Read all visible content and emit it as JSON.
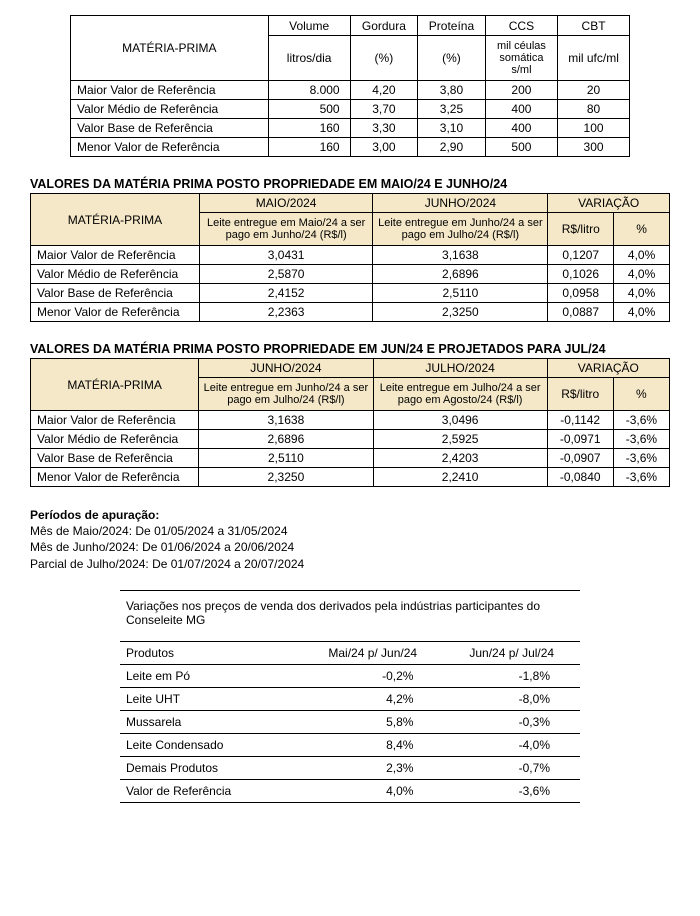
{
  "table1": {
    "header_main": "MATÉRIA-PRIMA",
    "col_groups": [
      "Volume",
      "Gordura",
      "Proteína",
      "CCS",
      "CBT"
    ],
    "col_units": [
      "litros/dia",
      "(%)",
      "(%)",
      "mil céulas somática s/ml",
      "mil ufc/ml"
    ],
    "rows": [
      {
        "label": "Maior Valor de Referência",
        "v": [
          "8.000",
          "4,20",
          "3,80",
          "200",
          "20"
        ]
      },
      {
        "label": "Valor Médio de Referência",
        "v": [
          "500",
          "3,70",
          "3,25",
          "400",
          "80"
        ]
      },
      {
        "label": "Valor Base de Referência",
        "v": [
          "160",
          "3,30",
          "3,10",
          "400",
          "100"
        ]
      },
      {
        "label": "Menor Valor de Referência",
        "v": [
          "160",
          "3,00",
          "2,90",
          "500",
          "300"
        ]
      }
    ]
  },
  "section2": {
    "title": "VALORES DA MATÉRIA PRIMA POSTO PROPRIEDADE EM MAIO/24 E JUNHO/24",
    "header_main": "MATÉRIA-PRIMA",
    "col1_top": "MAIO/2024",
    "col1_sub": "Leite entregue em Maio/24 a ser pago em Junho/24 (R$/l)",
    "col2_top": "JUNHO/2024",
    "col2_sub": "Leite entregue em Junho/24 a ser pago em Julho/24 (R$/l)",
    "var_top": "VARIAÇÃO",
    "var_sub1": "R$/litro",
    "var_sub2": "%",
    "rows": [
      {
        "label": "Maior Valor de Referência",
        "a": "3,0431",
        "b": "3,1638",
        "d": "0,1207",
        "p": "4,0%"
      },
      {
        "label": "Valor Médio de Referência",
        "a": "2,5870",
        "b": "2,6896",
        "d": "0,1026",
        "p": "4,0%"
      },
      {
        "label": "Valor Base de Referência",
        "a": "2,4152",
        "b": "2,5110",
        "d": "0,0958",
        "p": "4,0%"
      },
      {
        "label": "Menor Valor de Referência",
        "a": "2,2363",
        "b": "2,3250",
        "d": "0,0887",
        "p": "4,0%"
      }
    ]
  },
  "section3": {
    "title": "VALORES DA MATÉRIA PRIMA POSTO PROPRIEDADE EM JUN/24 E PROJETADOS PARA JUL/24",
    "header_main": "MATÉRIA-PRIMA",
    "col1_top": "JUNHO/2024",
    "col1_sub": "Leite entregue em Junho/24 a ser pago em Julho/24 (R$/l)",
    "col2_top": "JULHO/2024",
    "col2_sub": "Leite entregue em Julho/24 a ser pago em Agosto/24 (R$/l)",
    "var_top": "VARIAÇÃO",
    "var_sub1": "R$/litro",
    "var_sub2": "%",
    "rows": [
      {
        "label": "Maior Valor de Referência",
        "a": "3,1638",
        "b": "3,0496",
        "d": "-0,1142",
        "p": "-3,6%"
      },
      {
        "label": "Valor Médio de Referência",
        "a": "2,6896",
        "b": "2,5925",
        "d": "-0,0971",
        "p": "-3,6%"
      },
      {
        "label": "Valor Base de Referência",
        "a": "2,5110",
        "b": "2,4203",
        "d": "-0,0907",
        "p": "-3,6%"
      },
      {
        "label": "Menor Valor de Referência",
        "a": "2,3250",
        "b": "2,2410",
        "d": "-0,0840",
        "p": "-3,6%"
      }
    ]
  },
  "notes": {
    "title": "Períodos de apuração:",
    "lines": [
      "Mês de Maio/2024: De 01/05/2024 a 31/05/2024",
      "Mês de Junho/2024: De 01/06/2024 a 20/06/2024",
      "Parcial de Julho/2024: De 01/07/2024 a 20/07/2024"
    ]
  },
  "table4": {
    "caption": "Variações nos preços de venda dos derivados pela indústrias participantes do Conseleite MG",
    "col_prod": "Produtos",
    "col1": "Mai/24 p/ Jun/24",
    "col2": "Jun/24 p/ Jul/24",
    "rows": [
      {
        "label": "Leite em Pó",
        "a": "-0,2%",
        "b": "-1,8%"
      },
      {
        "label": "Leite UHT",
        "a": "4,2%",
        "b": "-8,0%"
      },
      {
        "label": "Mussarela",
        "a": "5,8%",
        "b": "-0,3%"
      },
      {
        "label": "Leite Condensado",
        "a": "8,4%",
        "b": "-4,0%"
      },
      {
        "label": "Demais Produtos",
        "a": "2,3%",
        "b": "-0,7%"
      },
      {
        "label": "Valor de Referência",
        "a": "4,0%",
        "b": "-3,6%"
      }
    ]
  }
}
